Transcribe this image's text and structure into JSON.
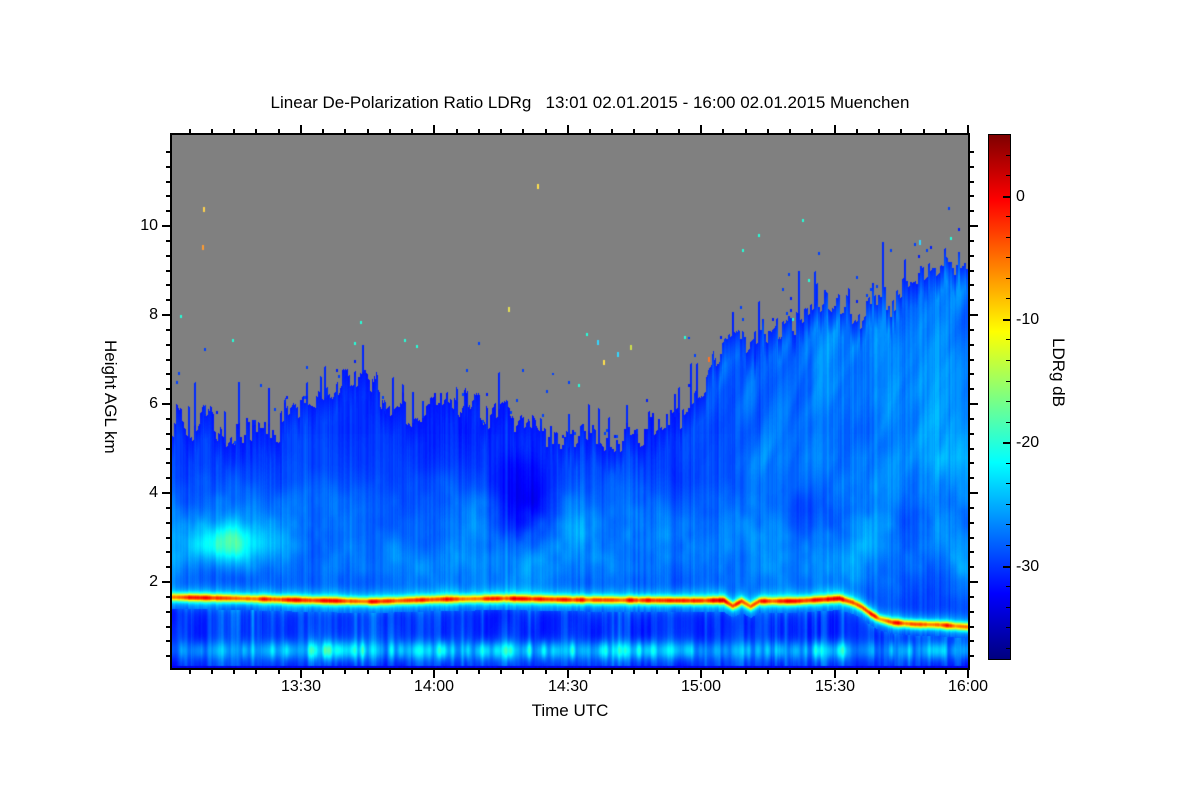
{
  "chart_data": {
    "type": "heatmap",
    "title": "Linear De-Polarization Ratio LDRg   13:01 02.01.2015 - 16:00 02.01.2015 Muenchen",
    "xlabel": "Time UTC",
    "ylabel": "Height AGL km",
    "site": "Muenchen",
    "time_start": "13:01 02.01.2015",
    "time_end": "16:00 02.01.2015",
    "x_range_minutes": [
      0,
      179
    ],
    "x_ticks": [
      {
        "label": "13:30",
        "minutes": 29
      },
      {
        "label": "14:00",
        "minutes": 59
      },
      {
        "label": "14:30",
        "minutes": 89
      },
      {
        "label": "15:00",
        "minutes": 119
      },
      {
        "label": "15:30",
        "minutes": 149
      },
      {
        "label": "16:00",
        "minutes": 179
      }
    ],
    "x_minor_step_minutes": 5,
    "x_minor_start_minutes": 4,
    "y_range_km": [
      0,
      12.05
    ],
    "y_ticks": [
      {
        "label": "2",
        "km": 2
      },
      {
        "label": "4",
        "km": 4
      },
      {
        "label": "6",
        "km": 6
      },
      {
        "label": "8",
        "km": 8
      },
      {
        "label": "10",
        "km": 10
      }
    ],
    "y_minor_step_km": 0.3333,
    "colorbar": {
      "label": "LDRg dB",
      "ticks": [
        {
          "label": "0",
          "db": 0
        },
        {
          "label": "-10",
          "db": -10
        },
        {
          "label": "-20",
          "db": -20
        },
        {
          "label": "-30",
          "db": -30
        }
      ],
      "minor_step_db": 1.6667,
      "max_db": 5,
      "min_db": -37.5,
      "stops": [
        {
          "p": 0.0,
          "color": "#00007f"
        },
        {
          "p": 0.125,
          "color": "#0000ff"
        },
        {
          "p": 0.375,
          "color": "#00ffff"
        },
        {
          "p": 0.625,
          "color": "#ffff00"
        },
        {
          "p": 0.875,
          "color": "#ff0000"
        },
        {
          "p": 1.0,
          "color": "#7f0000"
        }
      ]
    },
    "no_data_color": "#808080",
    "cloud_top_profile_km": [
      [
        0,
        5.8
      ],
      [
        4,
        5.3
      ],
      [
        8,
        5.8
      ],
      [
        12,
        5.2
      ],
      [
        16,
        5.5
      ],
      [
        20,
        5.3
      ],
      [
        24,
        5.4
      ],
      [
        28,
        6.0
      ],
      [
        31,
        6.2
      ],
      [
        34,
        5.9
      ],
      [
        38,
        6.4
      ],
      [
        42,
        6.8
      ],
      [
        45,
        6.6
      ],
      [
        48,
        5.8
      ],
      [
        51,
        6.1
      ],
      [
        54,
        5.8
      ],
      [
        58,
        6.0
      ],
      [
        62,
        6.2
      ],
      [
        65,
        5.8
      ],
      [
        68,
        6.3
      ],
      [
        71,
        5.7
      ],
      [
        74,
        6.0
      ],
      [
        77,
        5.6
      ],
      [
        80,
        5.8
      ],
      [
        83,
        5.4
      ],
      [
        86,
        5.3
      ],
      [
        89,
        5.2
      ],
      [
        93,
        5.3
      ],
      [
        97,
        5.1
      ],
      [
        101,
        5.3
      ],
      [
        105,
        5.3
      ],
      [
        109,
        5.6
      ],
      [
        113,
        5.8
      ],
      [
        117,
        6.1
      ],
      [
        120,
        6.5
      ],
      [
        123,
        7.2
      ],
      [
        126,
        7.4
      ],
      [
        129,
        7.3
      ],
      [
        132,
        7.6
      ],
      [
        135,
        7.5
      ],
      [
        138,
        7.9
      ],
      [
        141,
        7.8
      ],
      [
        144,
        8.1
      ],
      [
        147,
        8.3
      ],
      [
        150,
        8.1
      ],
      [
        153,
        8.0
      ],
      [
        156,
        8.3
      ],
      [
        159,
        8.4
      ],
      [
        162,
        8.3
      ],
      [
        165,
        8.6
      ],
      [
        168,
        8.8
      ],
      [
        171,
        9.0
      ],
      [
        174,
        9.2
      ],
      [
        177,
        9.1
      ],
      [
        179,
        9.2
      ]
    ],
    "melting_layer_km": [
      [
        0,
        1.67
      ],
      [
        15,
        1.64
      ],
      [
        30,
        1.6
      ],
      [
        45,
        1.57
      ],
      [
        60,
        1.62
      ],
      [
        75,
        1.64
      ],
      [
        90,
        1.61
      ],
      [
        105,
        1.6
      ],
      [
        118,
        1.59
      ],
      [
        124,
        1.6
      ],
      [
        126,
        1.47
      ],
      [
        128,
        1.58
      ],
      [
        130,
        1.46
      ],
      [
        132,
        1.58
      ],
      [
        140,
        1.58
      ],
      [
        147,
        1.62
      ],
      [
        150,
        1.64
      ],
      [
        153,
        1.55
      ],
      [
        155,
        1.45
      ],
      [
        157,
        1.3
      ],
      [
        159,
        1.18
      ],
      [
        162,
        1.1
      ],
      [
        167,
        1.06
      ],
      [
        172,
        1.05
      ],
      [
        179,
        1.0
      ]
    ],
    "surface_layer_intensity": [
      [
        0,
        0.45
      ],
      [
        8,
        0.4
      ],
      [
        16,
        0.5
      ],
      [
        24,
        0.75
      ],
      [
        30,
        0.95
      ],
      [
        36,
        1.0
      ],
      [
        42,
        0.85
      ],
      [
        48,
        0.6
      ],
      [
        54,
        0.65
      ],
      [
        60,
        0.8
      ],
      [
        66,
        0.7
      ],
      [
        72,
        0.8
      ],
      [
        78,
        0.85
      ],
      [
        84,
        0.8
      ],
      [
        90,
        0.9
      ],
      [
        96,
        0.85
      ],
      [
        102,
        0.9
      ],
      [
        108,
        0.9
      ],
      [
        114,
        0.8
      ],
      [
        120,
        0.65
      ],
      [
        125,
        0.55
      ],
      [
        128,
        0.7
      ],
      [
        132,
        0.45
      ],
      [
        136,
        0.55
      ],
      [
        141,
        0.75
      ],
      [
        146,
        0.8
      ],
      [
        151,
        0.7
      ],
      [
        156,
        0.55
      ],
      [
        160,
        0.5
      ],
      [
        164,
        0.6
      ],
      [
        168,
        0.5
      ],
      [
        172,
        0.65
      ],
      [
        176,
        0.55
      ],
      [
        179,
        0.5
      ]
    ],
    "specks": [
      {
        "t": 7.0,
        "h": 10.43,
        "color": "#ffd24d"
      },
      {
        "t": 6.7,
        "h": 9.57,
        "color": "#ff9b30"
      },
      {
        "t": 82.1,
        "h": 10.95,
        "color": "#ffe14d"
      },
      {
        "t": 75.6,
        "h": 8.18,
        "color": "#e6e055"
      },
      {
        "t": 95.6,
        "h": 7.44,
        "color": "#33d6ff"
      },
      {
        "t": 96.9,
        "h": 6.99,
        "color": "#ffe14d"
      },
      {
        "t": 100.0,
        "h": 7.17,
        "color": "#33d6ff"
      },
      {
        "t": 103.0,
        "h": 7.33,
        "color": "#cfe04d"
      },
      {
        "t": 120.5,
        "h": 7.06,
        "color": "#ff7426"
      },
      {
        "t": 168.0,
        "h": 9.69,
        "color": "#33d6ff"
      }
    ]
  }
}
